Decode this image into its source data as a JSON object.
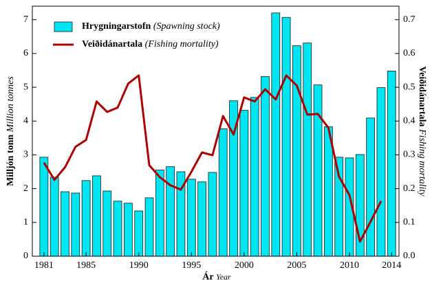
{
  "chart_data": {
    "type": "bar_line",
    "xlabel": "Ár",
    "xlabel_en": "Year",
    "ylabel": "Milljón tonn",
    "ylabel_en": "Million tonnes",
    "y2label": "Veiðidánartala",
    "y2label_en": "Fishing mortality",
    "x": [
      1981,
      1982,
      1983,
      1984,
      1985,
      1986,
      1987,
      1988,
      1989,
      1990,
      1991,
      1992,
      1993,
      1994,
      1995,
      1996,
      1997,
      1998,
      1999,
      2000,
      2001,
      2002,
      2003,
      2004,
      2005,
      2006,
      2007,
      2008,
      2009,
      2010,
      2011,
      2012,
      2013,
      2014
    ],
    "series": [
      {
        "name": "Hrygningarstofn",
        "name_en": "(Spawning stock)",
        "kind": "bar",
        "color": "#00e5f2",
        "axis": "y",
        "values": [
          2.93,
          2.34,
          1.91,
          1.87,
          2.24,
          2.38,
          1.93,
          1.63,
          1.57,
          1.34,
          1.73,
          2.55,
          2.65,
          2.5,
          2.28,
          2.2,
          2.48,
          3.77,
          4.6,
          4.32,
          4.7,
          5.32,
          7.2,
          7.07,
          6.23,
          6.31,
          5.07,
          3.83,
          2.93,
          2.91,
          3.01,
          4.09,
          4.99,
          5.48
        ]
      },
      {
        "name": "Veiðidánartala",
        "name_en": "(Fishing mortality)",
        "kind": "line",
        "color": "#b00000",
        "axis": "y2",
        "values": [
          0.277,
          0.226,
          0.263,
          0.324,
          0.344,
          0.458,
          0.427,
          0.44,
          0.511,
          0.535,
          0.269,
          0.234,
          0.21,
          0.197,
          0.25,
          0.307,
          0.299,
          0.415,
          0.36,
          0.47,
          0.458,
          0.494,
          0.464,
          0.535,
          0.505,
          0.419,
          0.421,
          0.38,
          0.236,
          0.181,
          0.043,
          0.102,
          0.163,
          null
        ]
      }
    ],
    "xlim": [
      1979.9,
      2014.7
    ],
    "xticks": [
      1981,
      1985,
      1990,
      1995,
      2000,
      2005,
      2010,
      2014
    ],
    "ylim": [
      0,
      7.4
    ],
    "yticks": [
      0,
      1,
      2,
      3,
      4,
      5,
      6,
      7
    ],
    "y2lim": [
      0,
      0.74
    ],
    "y2ticks": [
      {
        "value": 0,
        "label": "0.0"
      },
      0.1,
      0.2,
      0.3,
      0.4,
      0.5,
      0.6,
      0.7
    ],
    "legend": "upper left"
  }
}
